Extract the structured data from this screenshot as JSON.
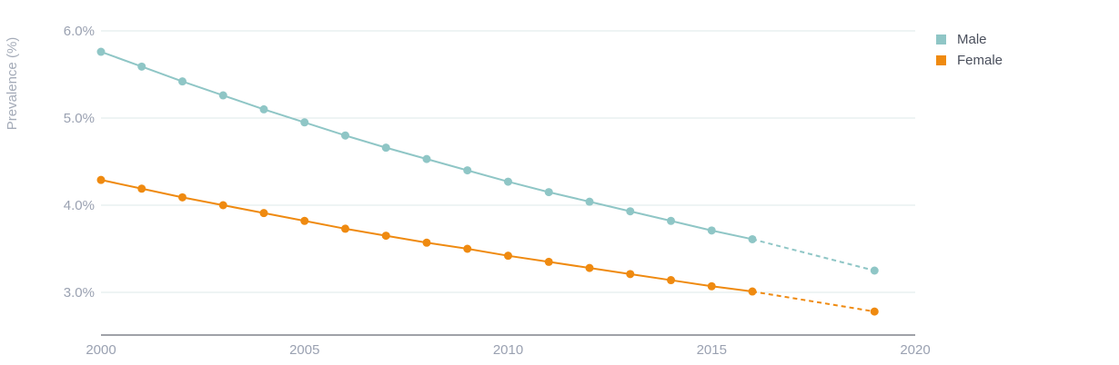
{
  "chart_data": {
    "type": "line",
    "ylabel": "Prevalence (%)",
    "xlim": [
      2000,
      2020
    ],
    "ylim": [
      2.5,
      6.0
    ],
    "x_ticks": [
      2000,
      2005,
      2010,
      2015,
      2020
    ],
    "y_ticks": [
      3.0,
      4.0,
      5.0,
      6.0
    ],
    "y_tick_labels": [
      "3.0%",
      "4.0%",
      "5.0%",
      "6.0%"
    ],
    "grid": true,
    "legend_position": "top-right",
    "series": [
      {
        "name": "Male",
        "color": "#8fc6c6",
        "x": [
          2000,
          2001,
          2002,
          2003,
          2004,
          2005,
          2006,
          2007,
          2008,
          2009,
          2010,
          2011,
          2012,
          2013,
          2014,
          2015,
          2016
        ],
        "values": [
          5.76,
          5.59,
          5.42,
          5.26,
          5.1,
          4.95,
          4.8,
          4.66,
          4.53,
          4.4,
          4.27,
          4.15,
          4.04,
          3.93,
          3.82,
          3.71,
          3.61
        ],
        "projection": {
          "x": [
            2016,
            2019
          ],
          "values": [
            3.61,
            3.25
          ]
        }
      },
      {
        "name": "Female",
        "color": "#ef8a10",
        "x": [
          2000,
          2001,
          2002,
          2003,
          2004,
          2005,
          2006,
          2007,
          2008,
          2009,
          2010,
          2011,
          2012,
          2013,
          2014,
          2015,
          2016
        ],
        "values": [
          4.29,
          4.19,
          4.09,
          4.0,
          3.91,
          3.82,
          3.73,
          3.65,
          3.57,
          3.5,
          3.42,
          3.35,
          3.28,
          3.21,
          3.14,
          3.07,
          3.01
        ],
        "projection": {
          "x": [
            2016,
            2019
          ],
          "values": [
            3.01,
            2.78
          ]
        }
      }
    ]
  }
}
